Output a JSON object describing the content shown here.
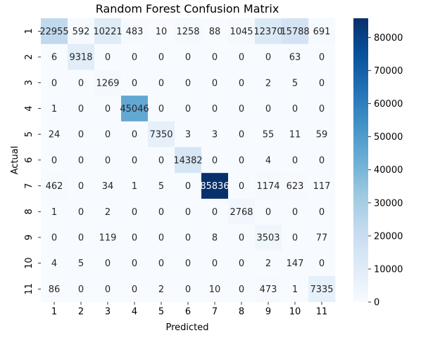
{
  "chart_data": {
    "type": "heatmap",
    "title": "Random Forest Confusion Matrix",
    "xlabel": "Predicted",
    "ylabel": "Actual",
    "x_labels": [
      "1",
      "2",
      "3",
      "4",
      "5",
      "6",
      "7",
      "8",
      "9",
      "10",
      "11"
    ],
    "y_labels": [
      "1",
      "2",
      "3",
      "4",
      "5",
      "6",
      "7",
      "8",
      "9",
      "10",
      "11"
    ],
    "matrix": [
      [
        22955,
        592,
        10221,
        483,
        10,
        1258,
        88,
        1045,
        12370,
        15788,
        691
      ],
      [
        6,
        9318,
        0,
        0,
        0,
        0,
        0,
        0,
        0,
        63,
        0
      ],
      [
        0,
        0,
        1269,
        0,
        0,
        0,
        0,
        0,
        2,
        5,
        0
      ],
      [
        1,
        0,
        0,
        45046,
        0,
        0,
        0,
        0,
        0,
        0,
        0
      ],
      [
        24,
        0,
        0,
        0,
        7350,
        3,
        3,
        0,
        55,
        11,
        59
      ],
      [
        0,
        0,
        0,
        0,
        0,
        14382,
        0,
        0,
        4,
        0,
        0
      ],
      [
        462,
        0,
        34,
        1,
        5,
        0,
        85836,
        0,
        1174,
        623,
        117
      ],
      [
        1,
        0,
        2,
        0,
        0,
        0,
        0,
        2768,
        0,
        0,
        0
      ],
      [
        0,
        0,
        119,
        0,
        0,
        0,
        8,
        0,
        3503,
        0,
        77
      ],
      [
        4,
        5,
        0,
        0,
        0,
        0,
        0,
        0,
        2,
        147,
        0
      ],
      [
        86,
        0,
        0,
        0,
        2,
        0,
        10,
        0,
        473,
        1,
        7335
      ]
    ],
    "colorbar": {
      "min": 0,
      "max": 85836,
      "ticks": [
        0,
        10000,
        20000,
        30000,
        40000,
        50000,
        60000,
        70000,
        80000
      ],
      "colormap": "Blues"
    }
  }
}
